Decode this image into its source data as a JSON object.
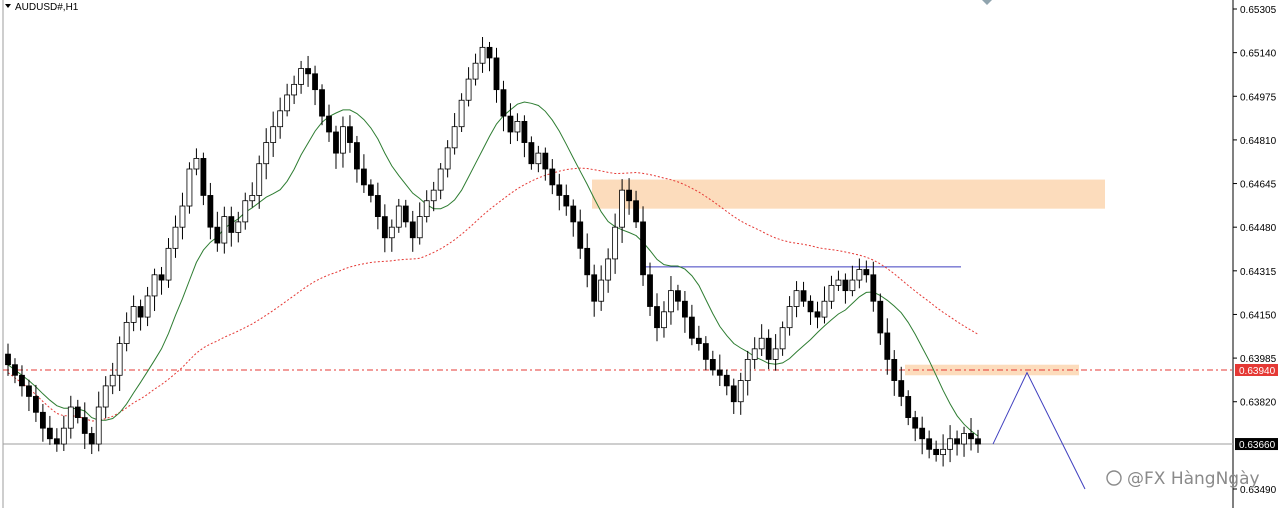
{
  "window": {
    "symbol_title": "AUDUSD#,H1",
    "watermark": "@FX HàngNgày"
  },
  "chart_data": {
    "type": "candlestick",
    "symbol": "AUDUSD#",
    "timeframe": "H1",
    "y_ticks": [
      "0.65305",
      "0.65140",
      "0.64975",
      "0.64810",
      "0.64645",
      "0.64480",
      "0.64315",
      "0.64150",
      "0.63985",
      "0.63820",
      "0.63490"
    ],
    "ylim": [
      0.6345,
      0.6535
    ],
    "price_tags": [
      {
        "label": "0.63940",
        "value": 0.6394,
        "color": "#e53935"
      },
      {
        "label": "0.63660",
        "value": 0.6366,
        "color": "#000000"
      }
    ],
    "horizontal_lines": [
      {
        "name": "support-line-red-dashed",
        "value": 0.6394,
        "color": "#e53935"
      },
      {
        "name": "current-price-line",
        "value": 0.6366,
        "color": "#9e9e9e"
      },
      {
        "name": "resistance-line-blue",
        "value": 0.6433,
        "color": "#3f3fbf"
      }
    ],
    "zones": [
      {
        "name": "supply-zone-upper",
        "from": 0.6455,
        "to": 0.6466,
        "color": "#fcdcbc"
      },
      {
        "name": "supply-zone-lower",
        "from": 0.6392,
        "to": 0.6396,
        "color": "#fcdcbc"
      }
    ],
    "projection": {
      "color": "#3f3fbf",
      "points": [
        [
          0.6366
        ],
        [
          0.6393
        ],
        [
          0.6349
        ]
      ]
    },
    "colors": {
      "bull": "#ffffff",
      "bear": "#000000",
      "ma_fast": "#2e7d32",
      "ma_slow": "#e53935"
    },
    "closes": [
      0.6396,
      0.6392,
      0.6388,
      0.6384,
      0.6378,
      0.6372,
      0.6368,
      0.6366,
      0.6372,
      0.638,
      0.6376,
      0.637,
      0.6366,
      0.638,
      0.6388,
      0.6392,
      0.6404,
      0.6412,
      0.6418,
      0.6414,
      0.6422,
      0.643,
      0.6428,
      0.644,
      0.6448,
      0.6456,
      0.647,
      0.6474,
      0.646,
      0.6448,
      0.6442,
      0.6452,
      0.6446,
      0.645,
      0.6458,
      0.646,
      0.6472,
      0.648,
      0.6486,
      0.6492,
      0.6498,
      0.6502,
      0.6508,
      0.6506,
      0.65,
      0.649,
      0.6484,
      0.6476,
      0.6486,
      0.648,
      0.647,
      0.6464,
      0.646,
      0.6452,
      0.6444,
      0.6448,
      0.6456,
      0.645,
      0.6444,
      0.6452,
      0.6458,
      0.6462,
      0.647,
      0.6478,
      0.6486,
      0.6496,
      0.6504,
      0.651,
      0.6516,
      0.6512,
      0.65,
      0.649,
      0.6484,
      0.6488,
      0.648,
      0.6472,
      0.6476,
      0.647,
      0.6464,
      0.646,
      0.6456,
      0.645,
      0.644,
      0.643,
      0.642,
      0.6428,
      0.6436,
      0.6448,
      0.6462,
      0.6458,
      0.645,
      0.643,
      0.6418,
      0.641,
      0.6416,
      0.6424,
      0.642,
      0.6414,
      0.6406,
      0.6404,
      0.6398,
      0.6394,
      0.6392,
      0.6388,
      0.6382,
      0.639,
      0.6398,
      0.6402,
      0.6406,
      0.6398,
      0.6402,
      0.641,
      0.6418,
      0.6424,
      0.642,
      0.6416,
      0.6414,
      0.642,
      0.6426,
      0.6428,
      0.6424,
      0.6428,
      0.6432,
      0.643,
      0.642,
      0.6408,
      0.6398,
      0.639,
      0.6384,
      0.6376,
      0.6372,
      0.6368,
      0.6364,
      0.6362,
      0.6364,
      0.6368,
      0.6366,
      0.637,
      0.6368,
      0.6366
    ]
  }
}
